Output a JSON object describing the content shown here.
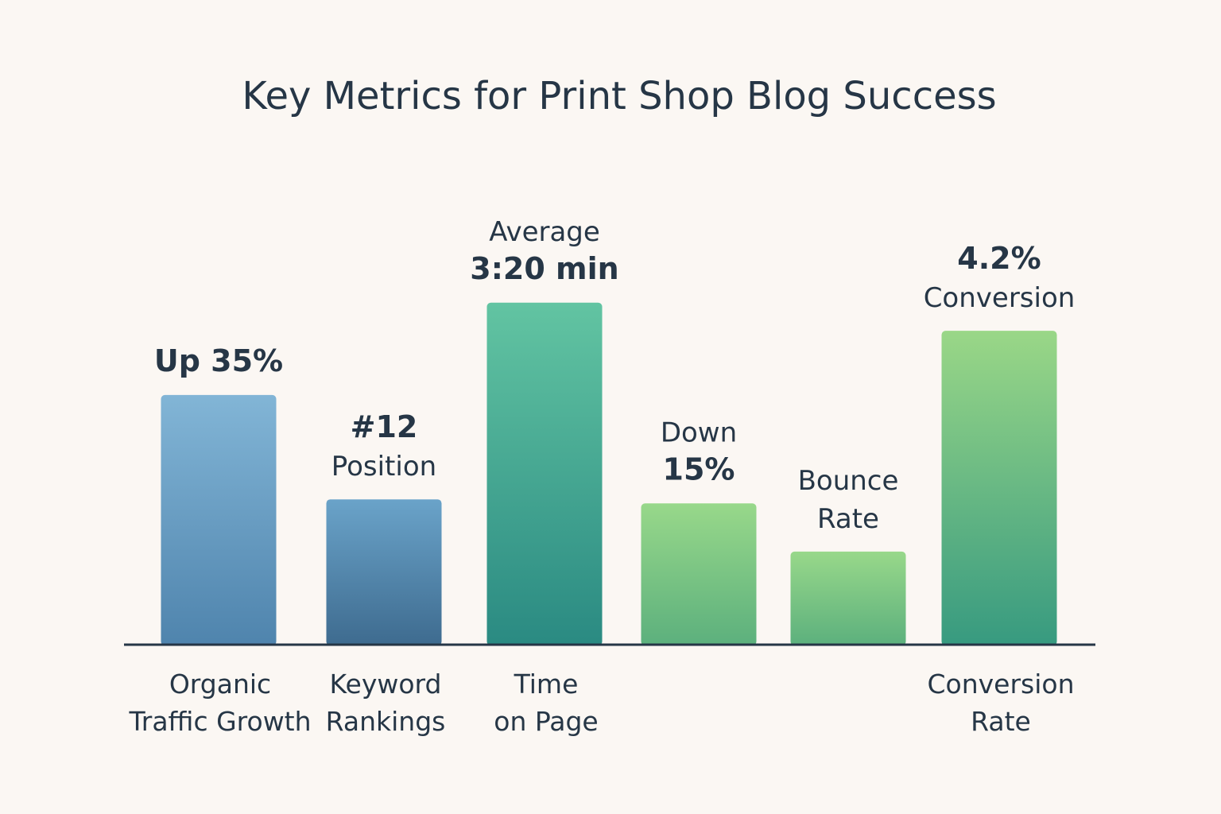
{
  "chart_data": {
    "type": "bar",
    "title": "Key Metrics for Print Shop Blog Success",
    "xlabel": "",
    "ylabel": "",
    "ylim": [
      0,
      100
    ],
    "grid": false,
    "bars": [
      {
        "category": [
          "Organic",
          "Traffic Growth"
        ],
        "value": 62,
        "label": [
          "Up 35%"
        ],
        "label_style": [
          "strong"
        ],
        "color_top": "#82b5d6",
        "color_bottom": "#4f84ad"
      },
      {
        "category": [
          "Keyword",
          "Rankings"
        ],
        "value": 36,
        "label": [
          "#12",
          "Position"
        ],
        "label_style": [
          "strong",
          "normal"
        ],
        "color_top": "#6aa3c9",
        "color_bottom": "#3e6b8f"
      },
      {
        "category": [
          "Time",
          "on Page"
        ],
        "value": 85,
        "label": [
          "Average",
          "3:20 min"
        ],
        "label_style": [
          "normal",
          "strong"
        ],
        "color_top": "#62c4a2",
        "color_bottom": "#2a8a82"
      },
      {
        "category": [],
        "value": 35,
        "label": [
          "Down",
          "15%"
        ],
        "label_style": [
          "normal",
          "strong"
        ],
        "color_top": "#98d88a",
        "color_bottom": "#5cb07d"
      },
      {
        "category": [],
        "value": 23,
        "label": [
          "Bounce",
          "Rate"
        ],
        "label_style": [
          "normal",
          "normal"
        ],
        "color_top": "#98d88a",
        "color_bottom": "#5cb07d"
      },
      {
        "category": [
          "Conversion",
          "Rate"
        ],
        "value": 78,
        "label": [
          "4.2%",
          "Conversion"
        ],
        "label_style": [
          "strong",
          "normal"
        ],
        "color_top": "#9ad787",
        "color_bottom": "#379a80"
      }
    ]
  },
  "colors": {
    "background": "#fbf7f3",
    "text": "#263646",
    "axis": "#263646"
  }
}
